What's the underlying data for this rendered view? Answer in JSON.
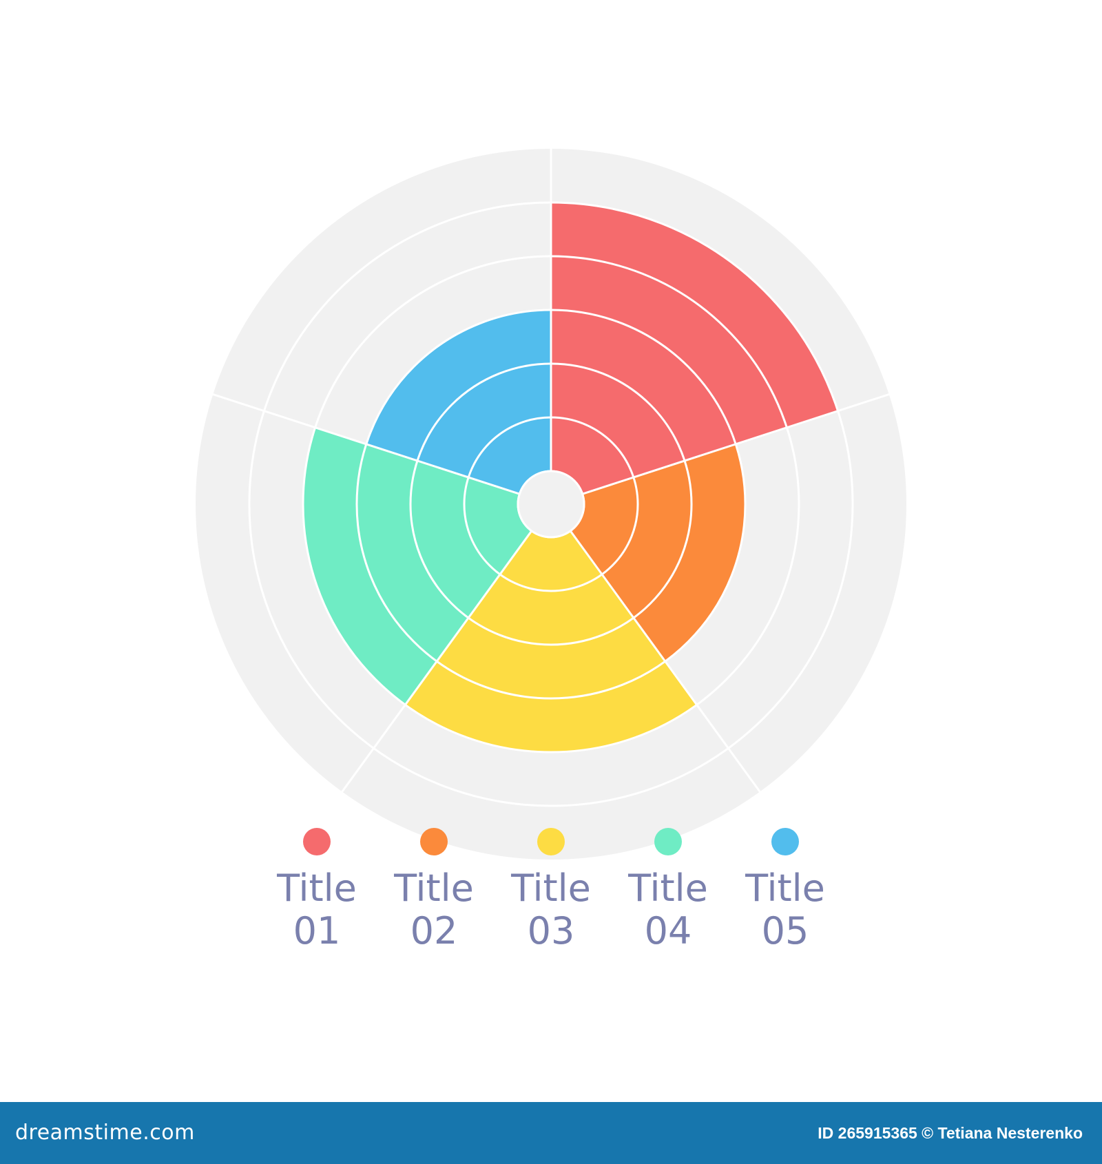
{
  "chart_data": {
    "type": "polar-area",
    "title": "",
    "categories": [
      "Title 01",
      "Title 02",
      "Title 03",
      "Title 04",
      "Title 05"
    ],
    "values": [
      5,
      3,
      4,
      4,
      3
    ],
    "max_value": 6,
    "colors": [
      "#f56b6d",
      "#fb8a3b",
      "#fddc43",
      "#6fecc4",
      "#52bded"
    ],
    "background_color": "#f1f1f1",
    "grid": true,
    "legend": [
      {
        "name": "Title 01",
        "line1": "Title",
        "line2": "01",
        "color": "#f56b6d"
      },
      {
        "name": "Title 02",
        "line1": "Title",
        "line2": "02",
        "color": "#fb8a3b"
      },
      {
        "name": "Title 03",
        "line1": "Title",
        "line2": "03",
        "color": "#fddc43"
      },
      {
        "name": "Title 04",
        "line1": "Title",
        "line2": "04",
        "color": "#6fecc4"
      },
      {
        "name": "Title 05",
        "line1": "Title",
        "line2": "05",
        "color": "#52bded"
      }
    ],
    "legend_placement": "bottom",
    "label_color": "#7a80ad"
  },
  "footer": {
    "site": "dreamstime.com",
    "credit": "ID 265915365 © Tetiana Nesterenko",
    "background": "#1776ad"
  }
}
